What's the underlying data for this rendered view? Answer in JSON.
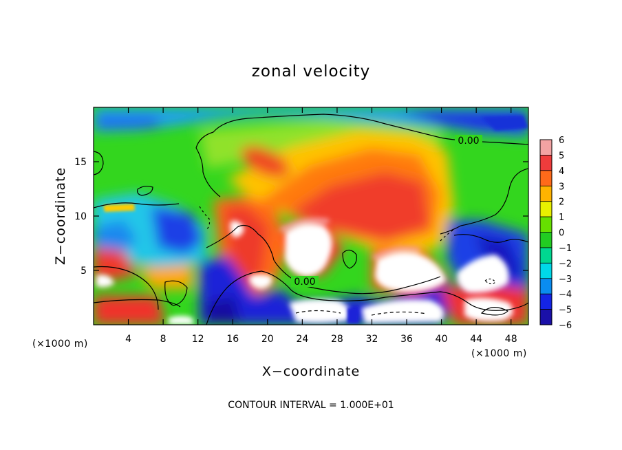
{
  "chart_data": {
    "type": "heatmap",
    "title": "zonal velocity",
    "xlabel": "X−coordinate",
    "ylabel": "Z−coordinate",
    "x_unit": "(×1000 m)",
    "footer": "CONTOUR INTERVAL = 1.000E+01",
    "contour_label": "0.00",
    "xlim": [
      0,
      50
    ],
    "ylim": [
      0,
      20
    ],
    "x_ticks": [
      4,
      8,
      12,
      16,
      20,
      24,
      28,
      32,
      36,
      40,
      44,
      48
    ],
    "y_ticks": [
      5,
      10,
      15
    ],
    "colorbar": {
      "ticks": [
        6,
        5,
        4,
        3,
        2,
        1,
        0,
        -1,
        -2,
        -3,
        -4,
        -5,
        -6
      ],
      "tick_labels": [
        "6",
        "5",
        "4",
        "3",
        "2",
        "1",
        "0",
        "−1",
        "−2",
        "−3",
        "−4",
        "−5",
        "−6"
      ],
      "colors": [
        "#f3a3a3",
        "#ef3c3c",
        "#ff6a1a",
        "#ffb300",
        "#e8f000",
        "#66e000",
        "#22cc22",
        "#00d790",
        "#00d8e8",
        "#0a8cf0",
        "#1424e6",
        "#1a10a8",
        "#7010a0"
      ]
    }
  }
}
